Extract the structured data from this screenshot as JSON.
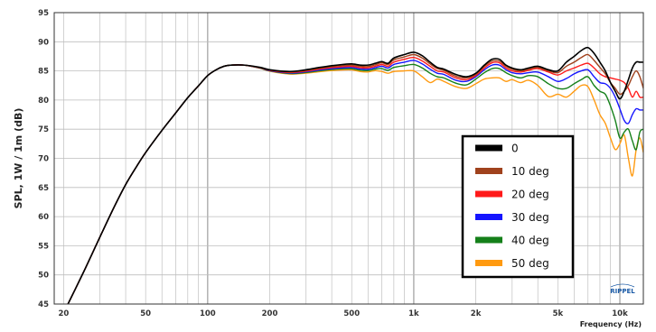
{
  "chart_data": {
    "type": "line",
    "xlabel": "Frequency (Hz)",
    "ylabel": "SPL, 1W / 1m (dB)",
    "xscale": "log",
    "xlim": [
      18,
      13000
    ],
    "ylim": [
      45,
      95
    ],
    "grid": true,
    "legend_position": "bottom-right",
    "x_ticks": [
      {
        "value": 20,
        "label": "20"
      },
      {
        "value": 50,
        "label": "50"
      },
      {
        "value": 100,
        "label": "100"
      },
      {
        "value": 200,
        "label": "200"
      },
      {
        "value": 500,
        "label": "500"
      },
      {
        "value": 1000,
        "label": "1k"
      },
      {
        "value": 2000,
        "label": "2k"
      },
      {
        "value": 5000,
        "label": "5k"
      },
      {
        "value": 10000,
        "label": "10k"
      }
    ],
    "y_ticks": [
      45,
      50,
      55,
      60,
      65,
      70,
      75,
      80,
      85,
      90,
      95
    ],
    "base_curve": [
      [
        20,
        43.5
      ],
      [
        25,
        50.5
      ],
      [
        30,
        56.5
      ],
      [
        35,
        61.5
      ],
      [
        40,
        65.5
      ],
      [
        45,
        68.5
      ],
      [
        50,
        71.0
      ],
      [
        60,
        74.8
      ],
      [
        70,
        77.8
      ],
      [
        80,
        80.4
      ],
      [
        90,
        82.4
      ],
      [
        100,
        84.2
      ],
      [
        110,
        85.2
      ],
      [
        120,
        85.8
      ],
      [
        130,
        86.0
      ],
      [
        150,
        86.0
      ],
      [
        180,
        85.6
      ],
      [
        200,
        85.2
      ],
      [
        250,
        84.9
      ],
      [
        300,
        85.2
      ],
      [
        350,
        85.6
      ],
      [
        400,
        85.9
      ],
      [
        450,
        86.1
      ],
      [
        500,
        86.2
      ],
      [
        550,
        86.0
      ],
      [
        600,
        86.0
      ],
      [
        650,
        86.3
      ]
    ],
    "series": [
      {
        "name": "0",
        "color": "#000000",
        "points": [
          [
            650,
            86.3
          ],
          [
            700,
            86.6
          ],
          [
            750,
            86.3
          ],
          [
            800,
            87.2
          ],
          [
            900,
            87.8
          ],
          [
            1000,
            88.2
          ],
          [
            1100,
            87.6
          ],
          [
            1200,
            86.5
          ],
          [
            1300,
            85.6
          ],
          [
            1400,
            85.3
          ],
          [
            1600,
            84.4
          ],
          [
            1800,
            84.0
          ],
          [
            2000,
            84.6
          ],
          [
            2200,
            86.0
          ],
          [
            2400,
            87.0
          ],
          [
            2600,
            87.0
          ],
          [
            2800,
            86.0
          ],
          [
            3000,
            85.5
          ],
          [
            3300,
            85.2
          ],
          [
            3600,
            85.5
          ],
          [
            4000,
            85.8
          ],
          [
            4500,
            85.2
          ],
          [
            5000,
            85.0
          ],
          [
            5500,
            86.5
          ],
          [
            6000,
            87.5
          ],
          [
            6500,
            88.5
          ],
          [
            7000,
            89.0
          ],
          [
            7500,
            88.0
          ],
          [
            8000,
            86.5
          ],
          [
            8500,
            85.0
          ],
          [
            9000,
            83.0
          ],
          [
            9500,
            81.5
          ],
          [
            10000,
            80.2
          ],
          [
            10500,
            81.5
          ],
          [
            11000,
            83.5
          ],
          [
            11500,
            85.5
          ],
          [
            12000,
            86.5
          ],
          [
            12500,
            86.5
          ],
          [
            13000,
            86.5
          ]
        ]
      },
      {
        "name": "10 deg",
        "color": "#a0421d",
        "points": [
          [
            650,
            86.2
          ],
          [
            700,
            86.4
          ],
          [
            750,
            86.1
          ],
          [
            800,
            86.9
          ],
          [
            900,
            87.4
          ],
          [
            1000,
            87.8
          ],
          [
            1100,
            87.2
          ],
          [
            1200,
            86.2
          ],
          [
            1300,
            85.4
          ],
          [
            1400,
            85.1
          ],
          [
            1600,
            84.1
          ],
          [
            1800,
            83.8
          ],
          [
            2000,
            84.4
          ],
          [
            2200,
            85.8
          ],
          [
            2400,
            86.7
          ],
          [
            2600,
            86.7
          ],
          [
            2800,
            85.8
          ],
          [
            3000,
            85.3
          ],
          [
            3300,
            85.0
          ],
          [
            3600,
            85.3
          ],
          [
            4000,
            85.6
          ],
          [
            4500,
            85.0
          ],
          [
            5000,
            84.7
          ],
          [
            5500,
            85.8
          ],
          [
            6000,
            86.5
          ],
          [
            6500,
            87.3
          ],
          [
            7000,
            87.8
          ],
          [
            7500,
            86.8
          ],
          [
            8000,
            85.6
          ],
          [
            8500,
            84.5
          ],
          [
            9000,
            83.0
          ],
          [
            9500,
            82.0
          ],
          [
            10000,
            81.0
          ],
          [
            10500,
            81.5
          ],
          [
            11000,
            82.5
          ],
          [
            11500,
            84.0
          ],
          [
            12000,
            85.0
          ],
          [
            12500,
            84.0
          ],
          [
            13000,
            82.0
          ]
        ]
      },
      {
        "name": "20 deg",
        "color": "#ff1a1a",
        "points": [
          [
            650,
            86.0
          ],
          [
            700,
            86.1
          ],
          [
            750,
            85.8
          ],
          [
            800,
            86.5
          ],
          [
            900,
            87.0
          ],
          [
            1000,
            87.3
          ],
          [
            1100,
            86.7
          ],
          [
            1200,
            85.8
          ],
          [
            1300,
            85.0
          ],
          [
            1400,
            84.8
          ],
          [
            1600,
            83.8
          ],
          [
            1800,
            83.5
          ],
          [
            2000,
            84.2
          ],
          [
            2200,
            85.5
          ],
          [
            2400,
            86.4
          ],
          [
            2600,
            86.4
          ],
          [
            2800,
            85.5
          ],
          [
            3000,
            85.0
          ],
          [
            3300,
            84.8
          ],
          [
            3600,
            85.1
          ],
          [
            4000,
            85.4
          ],
          [
            4500,
            84.8
          ],
          [
            5000,
            84.3
          ],
          [
            5500,
            85.0
          ],
          [
            6000,
            85.5
          ],
          [
            6500,
            86.0
          ],
          [
            7000,
            86.3
          ],
          [
            7500,
            85.5
          ],
          [
            8000,
            84.5
          ],
          [
            8500,
            84.0
          ],
          [
            9000,
            83.8
          ],
          [
            9500,
            83.6
          ],
          [
            10000,
            83.4
          ],
          [
            10500,
            83.0
          ],
          [
            11000,
            82.0
          ],
          [
            11500,
            80.5
          ],
          [
            12000,
            81.5
          ],
          [
            12500,
            80.5
          ],
          [
            13000,
            80.5
          ]
        ]
      },
      {
        "name": "30 deg",
        "color": "#1515ff",
        "points": [
          [
            650,
            85.8
          ],
          [
            700,
            85.8
          ],
          [
            750,
            85.5
          ],
          [
            800,
            86.1
          ],
          [
            900,
            86.5
          ],
          [
            1000,
            86.8
          ],
          [
            1100,
            86.2
          ],
          [
            1200,
            85.3
          ],
          [
            1300,
            84.6
          ],
          [
            1400,
            84.4
          ],
          [
            1600,
            83.4
          ],
          [
            1800,
            83.2
          ],
          [
            2000,
            84.0
          ],
          [
            2200,
            85.2
          ],
          [
            2400,
            86.0
          ],
          [
            2600,
            86.0
          ],
          [
            2800,
            85.2
          ],
          [
            3000,
            84.7
          ],
          [
            3300,
            84.5
          ],
          [
            3600,
            84.7
          ],
          [
            4000,
            84.8
          ],
          [
            4500,
            84.0
          ],
          [
            5000,
            83.2
          ],
          [
            5500,
            83.7
          ],
          [
            6000,
            84.5
          ],
          [
            6500,
            85.0
          ],
          [
            7000,
            85.2
          ],
          [
            7500,
            84.0
          ],
          [
            8000,
            83.0
          ],
          [
            8500,
            82.8
          ],
          [
            9000,
            82.0
          ],
          [
            9500,
            80.5
          ],
          [
            10000,
            78.5
          ],
          [
            10500,
            76.5
          ],
          [
            11000,
            76.0
          ],
          [
            11500,
            77.5
          ],
          [
            12000,
            78.5
          ],
          [
            12500,
            78.3
          ],
          [
            13000,
            78.3
          ]
        ]
      },
      {
        "name": "40 deg",
        "color": "#15801a",
        "points": [
          [
            650,
            85.4
          ],
          [
            700,
            85.4
          ],
          [
            750,
            85.1
          ],
          [
            800,
            85.6
          ],
          [
            900,
            85.9
          ],
          [
            1000,
            86.1
          ],
          [
            1100,
            85.5
          ],
          [
            1200,
            84.6
          ],
          [
            1300,
            84.0
          ],
          [
            1400,
            83.8
          ],
          [
            1600,
            82.9
          ],
          [
            1800,
            82.6
          ],
          [
            2000,
            83.6
          ],
          [
            2200,
            84.7
          ],
          [
            2400,
            85.4
          ],
          [
            2600,
            85.4
          ],
          [
            2800,
            84.7
          ],
          [
            3000,
            84.2
          ],
          [
            3300,
            83.8
          ],
          [
            3600,
            84.2
          ],
          [
            4000,
            84.0
          ],
          [
            4500,
            82.8
          ],
          [
            5000,
            82.0
          ],
          [
            5500,
            82.0
          ],
          [
            6000,
            82.8
          ],
          [
            6500,
            83.5
          ],
          [
            7000,
            84.0
          ],
          [
            7500,
            82.5
          ],
          [
            8000,
            81.5
          ],
          [
            8500,
            81.0
          ],
          [
            9000,
            79.0
          ],
          [
            9500,
            76.5
          ],
          [
            10000,
            73.5
          ],
          [
            10500,
            74.5
          ],
          [
            11000,
            75.0
          ],
          [
            11500,
            73.0
          ],
          [
            12000,
            71.5
          ],
          [
            12500,
            74.5
          ],
          [
            13000,
            75.0
          ]
        ]
      },
      {
        "name": "50 deg",
        "color": "#ff9a10",
        "points": [
          [
            650,
            84.9
          ],
          [
            700,
            84.9
          ],
          [
            750,
            84.6
          ],
          [
            800,
            84.9
          ],
          [
            900,
            85.0
          ],
          [
            1000,
            85.0
          ],
          [
            1100,
            84.0
          ],
          [
            1200,
            83.0
          ],
          [
            1300,
            83.6
          ],
          [
            1400,
            83.2
          ],
          [
            1600,
            82.3
          ],
          [
            1800,
            82.0
          ],
          [
            2000,
            82.8
          ],
          [
            2200,
            83.6
          ],
          [
            2400,
            83.8
          ],
          [
            2600,
            83.8
          ],
          [
            2800,
            83.2
          ],
          [
            3000,
            83.5
          ],
          [
            3300,
            83.0
          ],
          [
            3600,
            83.4
          ],
          [
            4000,
            82.5
          ],
          [
            4500,
            80.6
          ],
          [
            5000,
            81.0
          ],
          [
            5500,
            80.5
          ],
          [
            6000,
            81.5
          ],
          [
            6500,
            82.5
          ],
          [
            7000,
            82.3
          ],
          [
            7500,
            80.0
          ],
          [
            8000,
            77.5
          ],
          [
            8500,
            76.0
          ],
          [
            9000,
            73.5
          ],
          [
            9500,
            71.5
          ],
          [
            10000,
            72.5
          ],
          [
            10500,
            74.0
          ],
          [
            11000,
            70.0
          ],
          [
            11500,
            67.0
          ],
          [
            12000,
            71.5
          ],
          [
            12500,
            73.5
          ],
          [
            13000,
            71.0
          ]
        ]
      }
    ]
  },
  "brand_label": "RIPPEL"
}
